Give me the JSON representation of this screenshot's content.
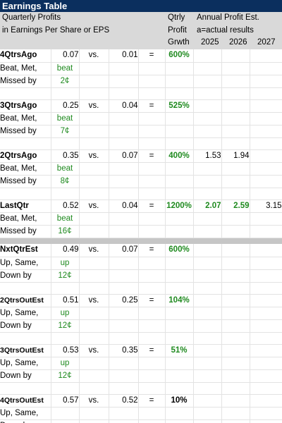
{
  "title": "Earnings Table",
  "header": {
    "line1": "Quarterly Profits",
    "line2": "in Earnings Per Share or EPS",
    "qtrly_line1": "Qtrly",
    "qtrly_line2": "Profit",
    "qtrly_line3": "Grwth",
    "annual_line1": "Annual Profit Est.",
    "annual_line2": "a=actual results",
    "years": [
      "2025",
      "2026",
      "2027"
    ]
  },
  "vs_label": "vs.",
  "eq_label": "=",
  "past_sub": [
    "Beat, Met,",
    "Missed by"
  ],
  "future_sub": [
    "Up, Same,",
    "Down by"
  ],
  "past_rows": [
    {
      "label": "4QtrsAgo",
      "eps": "0.07",
      "prior": "0.01",
      "growth": "600%",
      "outcome": "beat",
      "amount": "2¢",
      "annual": [
        "",
        "",
        ""
      ]
    },
    {
      "label": "3QtrsAgo",
      "eps": "0.25",
      "prior": "0.04",
      "growth": "525%",
      "outcome": "beat",
      "amount": "7¢",
      "annual": [
        "",
        "",
        ""
      ]
    },
    {
      "label": "2QtrsAgo",
      "eps": "0.35",
      "prior": "0.07",
      "growth": "400%",
      "outcome": "beat",
      "amount": "8¢",
      "annual": [
        "1.53",
        "1.94",
        ""
      ]
    },
    {
      "label": "LastQtr",
      "eps": "0.52",
      "prior": "0.04",
      "growth": "1200%",
      "outcome": "beat",
      "amount": "16¢",
      "annual": [
        "2.07",
        "2.59",
        "3.15"
      ]
    }
  ],
  "future_rows": [
    {
      "label": "NxtQtrEst",
      "eps": "0.49",
      "prior": "0.07",
      "growth": "600%",
      "outcome": "up",
      "amount": "12¢"
    },
    {
      "label": "2QtrsOutEst",
      "eps": "0.51",
      "prior": "0.25",
      "growth": "104%",
      "outcome": "up",
      "amount": "12¢"
    },
    {
      "label": "3QtrsOutEst",
      "eps": "0.53",
      "prior": "0.35",
      "growth": "51%",
      "outcome": "up",
      "amount": "12¢"
    },
    {
      "label": "4QtrsOutEst",
      "eps": "0.57",
      "prior": "0.52",
      "growth": "10%",
      "outcome": "",
      "amount": ""
    }
  ]
}
